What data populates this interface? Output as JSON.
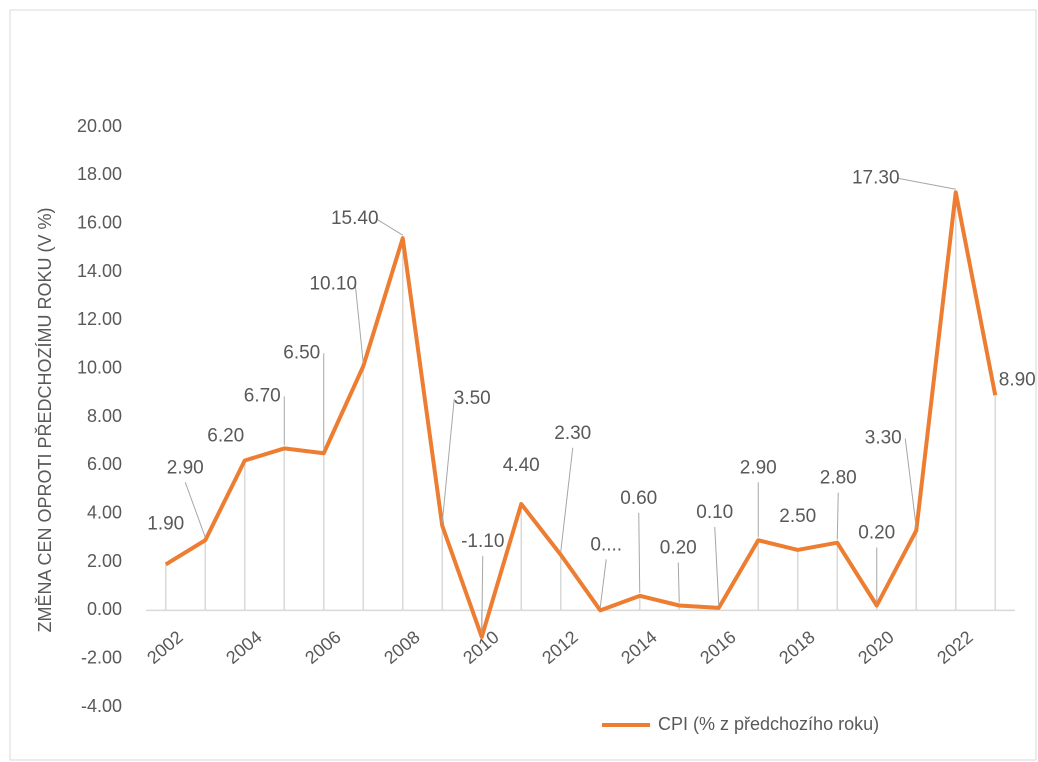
{
  "chart_data": {
    "type": "line",
    "y_axis_title": "ZMĚNA CEN OPROTI PŘEDCHOZÍMU ROKU (V %)",
    "categories": [
      "2002",
      null,
      "2004",
      null,
      "2006",
      null,
      "2008",
      null,
      "2010",
      null,
      "2012",
      null,
      "2014",
      null,
      "2016",
      null,
      "2018",
      null,
      "2020",
      null,
      "2022",
      null
    ],
    "series": [
      {
        "name": "CPI (% z předchozího roku)",
        "color": "#ed7d31",
        "values": [
          1.9,
          2.9,
          6.2,
          6.7,
          6.5,
          10.1,
          15.4,
          3.5,
          -1.1,
          4.4,
          2.3,
          0,
          0.6,
          0.2,
          0.1,
          2.9,
          2.5,
          2.8,
          0.2,
          3.3,
          17.3,
          8.9
        ],
        "value_labels": [
          "1.90",
          "2.90",
          "6.20",
          "6.70",
          "6.50",
          "10.10",
          "15.40",
          "3.50",
          "-1.10",
          "4.40",
          "2.30",
          "0....",
          "0.60",
          "0.20",
          "0.10",
          "2.90",
          "2.50",
          "2.80",
          "0.20",
          "3.30",
          "17.30",
          "8.90"
        ]
      }
    ],
    "ylim": [
      -4,
      20
    ],
    "yticks": [
      {
        "value": -4,
        "label": "-4.00"
      },
      {
        "value": -2,
        "label": "-2.00"
      },
      {
        "value": 0,
        "label": "0.00"
      },
      {
        "value": 2,
        "label": "2.00"
      },
      {
        "value": 4,
        "label": "4.00"
      },
      {
        "value": 6,
        "label": "6.00"
      },
      {
        "value": 8,
        "label": "8.00"
      },
      {
        "value": 10,
        "label": "10.00"
      },
      {
        "value": 12,
        "label": "12.00"
      },
      {
        "value": 14,
        "label": "14.00"
      },
      {
        "value": 16,
        "label": "16.00"
      },
      {
        "value": 18,
        "label": "18.00"
      },
      {
        "value": 20,
        "label": "20.00"
      }
    ],
    "drop_lines": true,
    "legend": "bottom"
  }
}
